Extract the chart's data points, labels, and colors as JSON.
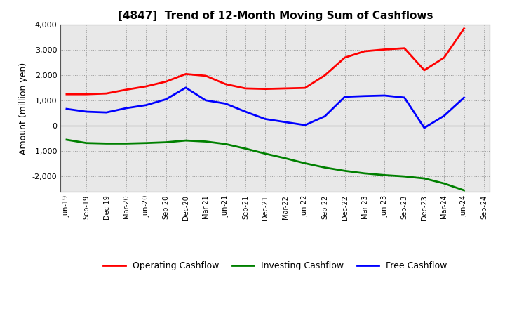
{
  "title": "[4847]  Trend of 12-Month Moving Sum of Cashflows",
  "ylabel": "Amount (million yen)",
  "background_color": "#ffffff",
  "plot_bg_color": "#e8e8e8",
  "grid_color": "#999999",
  "x_labels": [
    "Jun-19",
    "Sep-19",
    "Dec-19",
    "Mar-20",
    "Jun-20",
    "Sep-20",
    "Dec-20",
    "Mar-21",
    "Jun-21",
    "Sep-21",
    "Dec-21",
    "Mar-22",
    "Jun-22",
    "Sep-22",
    "Dec-22",
    "Mar-23",
    "Jun-23",
    "Sep-23",
    "Dec-23",
    "Mar-24",
    "Jun-24",
    "Sep-24"
  ],
  "operating": [
    1250,
    1250,
    1280,
    1430,
    1560,
    1750,
    2050,
    1980,
    1650,
    1480,
    1460,
    1480,
    1500,
    2000,
    2700,
    2950,
    3020,
    3070,
    2200,
    2700,
    3850,
    null
  ],
  "investing": [
    -550,
    -680,
    -700,
    -700,
    -680,
    -650,
    -580,
    -620,
    -720,
    -900,
    -1100,
    -1280,
    -1480,
    -1650,
    -1780,
    -1880,
    -1950,
    -2000,
    -2080,
    -2280,
    -2550,
    null
  ],
  "free": [
    670,
    560,
    530,
    700,
    820,
    1050,
    1510,
    1010,
    880,
    560,
    270,
    150,
    30,
    380,
    1150,
    1180,
    1200,
    1120,
    -80,
    400,
    1120,
    null
  ],
  "operating_color": "#ff0000",
  "investing_color": "#008000",
  "free_color": "#0000ff",
  "ylim": [
    -2600,
    4000
  ],
  "yticks": [
    -2000,
    -1000,
    0,
    1000,
    2000,
    3000,
    4000
  ],
  "legend_labels": [
    "Operating Cashflow",
    "Investing Cashflow",
    "Free Cashflow"
  ],
  "line_width": 2.0
}
